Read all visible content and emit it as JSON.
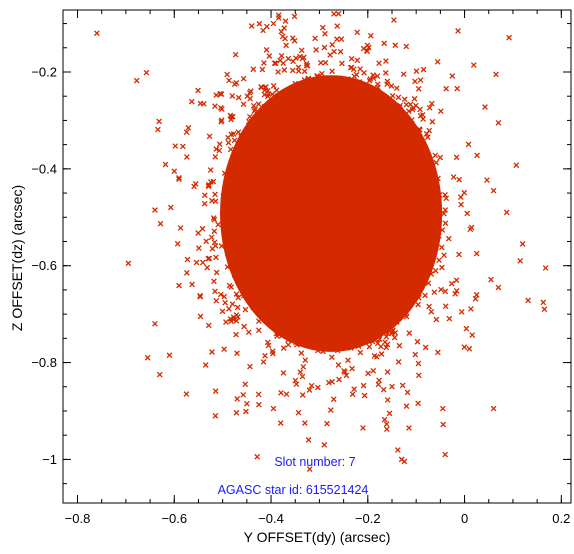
{
  "colors": {
    "points": "#d42a00",
    "annotation": "#1a1aff",
    "axes": "#000000",
    "background": "#ffffff"
  },
  "chart_data": {
    "type": "scatter",
    "title": "",
    "xlabel": "Y OFFSET(dy) (arcsec)",
    "ylabel": "Z OFFSET(dz) (arcsec)",
    "xlim": [
      -0.83,
      0.22
    ],
    "ylim": [
      -1.09,
      -0.072
    ],
    "x_ticks": [
      -0.8,
      -0.6,
      -0.4,
      -0.2,
      0,
      0.2
    ],
    "x_tick_labels": [
      "−0.8",
      "−0.6",
      "−0.4",
      "−0.2",
      "0",
      "0.2"
    ],
    "y_ticks": [
      -0.2,
      -0.4,
      -0.6,
      -0.8,
      -1.0
    ],
    "y_tick_labels": [
      "−0.2",
      "−0.4",
      "−0.6",
      "−0.8",
      "−1"
    ],
    "grid": false,
    "marker": "x",
    "cluster_summary": {
      "approx_center": [
        -0.28,
        -0.48
      ],
      "approx_dense_range_y_offset": [
        -0.5,
        -0.05
      ],
      "approx_dense_range_z_offset": [
        -0.78,
        -0.22
      ]
    },
    "series": [
      {
        "values": [
          [
            -0.76,
            -0.12
          ],
          [
            -0.37,
            -0.095
          ],
          [
            -0.395,
            -0.1
          ],
          [
            -0.27,
            -0.08
          ],
          [
            -0.355,
            -0.13
          ],
          [
            -0.44,
            -0.105
          ],
          [
            -0.505,
            -0.245
          ],
          [
            -0.475,
            -0.225
          ],
          [
            -0.16,
            -0.225
          ],
          [
            0.065,
            -0.205
          ],
          [
            0.07,
            -0.305
          ],
          [
            0.06,
            -0.445
          ],
          [
            -0.6,
            -0.405
          ],
          [
            -0.055,
            -0.42
          ],
          [
            -0.64,
            -0.485
          ],
          [
            -0.04,
            -0.485
          ],
          [
            0.12,
            -0.555
          ],
          [
            -0.695,
            -0.595
          ],
          [
            0.025,
            -0.575
          ],
          [
            0.115,
            -0.59
          ],
          [
            0.07,
            -0.645
          ],
          [
            0.025,
            -0.66
          ],
          [
            0.165,
            -0.69
          ],
          [
            -0.64,
            -0.72
          ],
          [
            -0.655,
            -0.79
          ],
          [
            -0.61,
            -0.785
          ],
          [
            -0.63,
            -0.825
          ],
          [
            -0.575,
            -0.865
          ],
          [
            -0.535,
            -0.805
          ],
          [
            -0.515,
            -0.91
          ],
          [
            -0.47,
            -0.875
          ],
          [
            -0.45,
            -0.885
          ],
          [
            -0.395,
            -0.895
          ],
          [
            -0.38,
            -0.925
          ],
          [
            -0.33,
            -0.925
          ],
          [
            -0.29,
            -0.97
          ],
          [
            -0.21,
            -0.935
          ],
          [
            -0.155,
            -0.905
          ],
          [
            -0.115,
            -0.935
          ],
          [
            -0.12,
            -0.89
          ],
          [
            -0.045,
            -0.895
          ],
          [
            0.06,
            -0.895
          ],
          [
            -0.04,
            -0.99
          ],
          [
            -0.13,
            -1.0
          ],
          [
            -0.32,
            -1.02
          ]
        ]
      }
    ],
    "annotations": [
      "Slot number: 7",
      "AGASC star id: 615521424"
    ]
  }
}
